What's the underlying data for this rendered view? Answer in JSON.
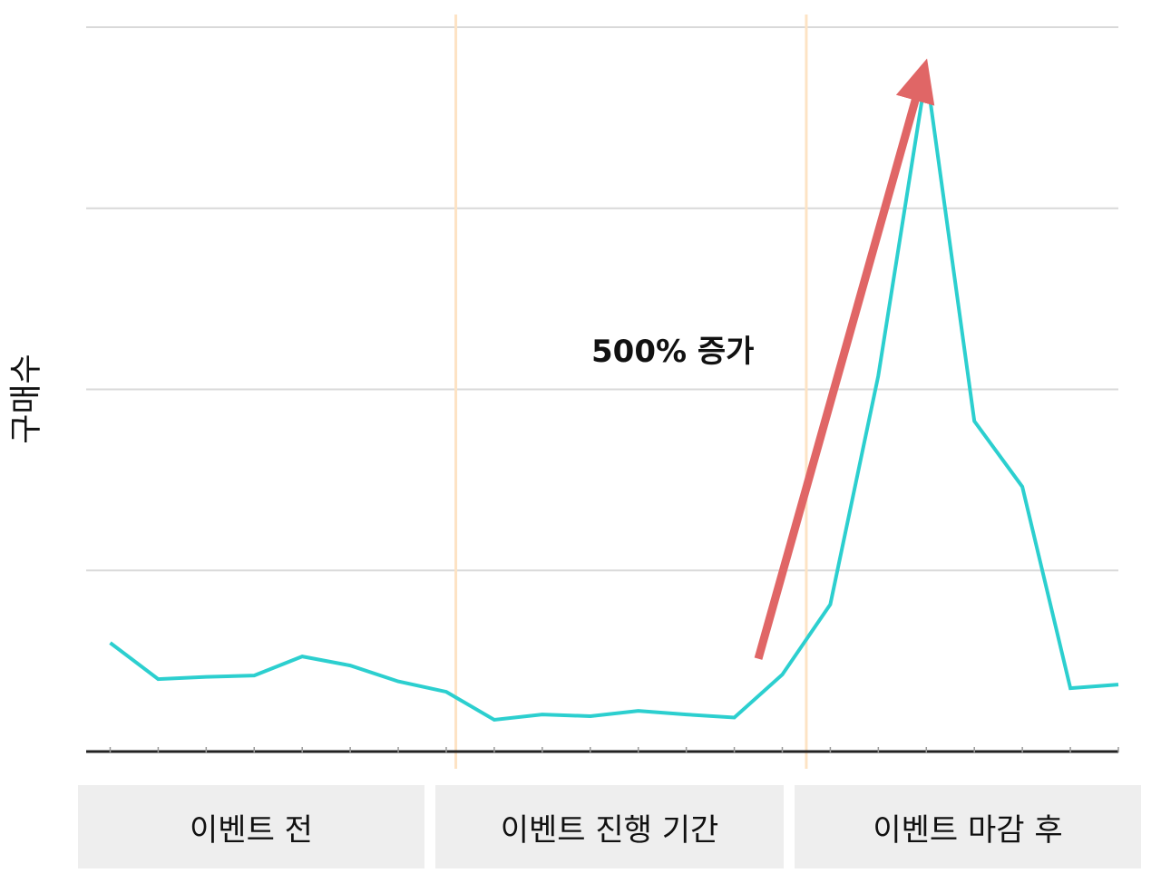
{
  "chart_data": {
    "type": "line",
    "title": "",
    "xlabel": "",
    "ylabel": "구매수",
    "x": [
      1,
      2,
      3,
      4,
      5,
      6,
      7,
      8,
      9,
      10,
      11,
      12,
      13,
      14,
      15,
      16,
      17,
      18,
      19,
      20,
      21,
      22
    ],
    "series": [
      {
        "values": [
          24,
          16,
          16.5,
          16.8,
          21,
          19,
          15.5,
          13.2,
          7,
          8.2,
          7.8,
          9,
          8.2,
          7.5,
          17,
          32.5,
          83,
          150,
          73,
          58.5,
          14,
          14.8
        ],
        "color": "#2ccfcf"
      }
    ],
    "ylim": [
      0,
      160
    ],
    "xlim": [
      0.5,
      22
    ],
    "yticks": [
      0,
      40,
      80,
      120,
      160
    ],
    "grid": true,
    "grid_axis": "y",
    "period_dividers_x": [
      8.2,
      15.5
    ],
    "period_labels": [
      "이벤트 전",
      "이벤트 진행 기간",
      "이벤트 마감 후"
    ],
    "annotation": {
      "text": "500% 증가",
      "arrow_from": [
        14.5,
        20.5
      ],
      "arrow_to": [
        17.8,
        145
      ],
      "color": "#e06666"
    },
    "divider_color": "#fde3c4"
  }
}
